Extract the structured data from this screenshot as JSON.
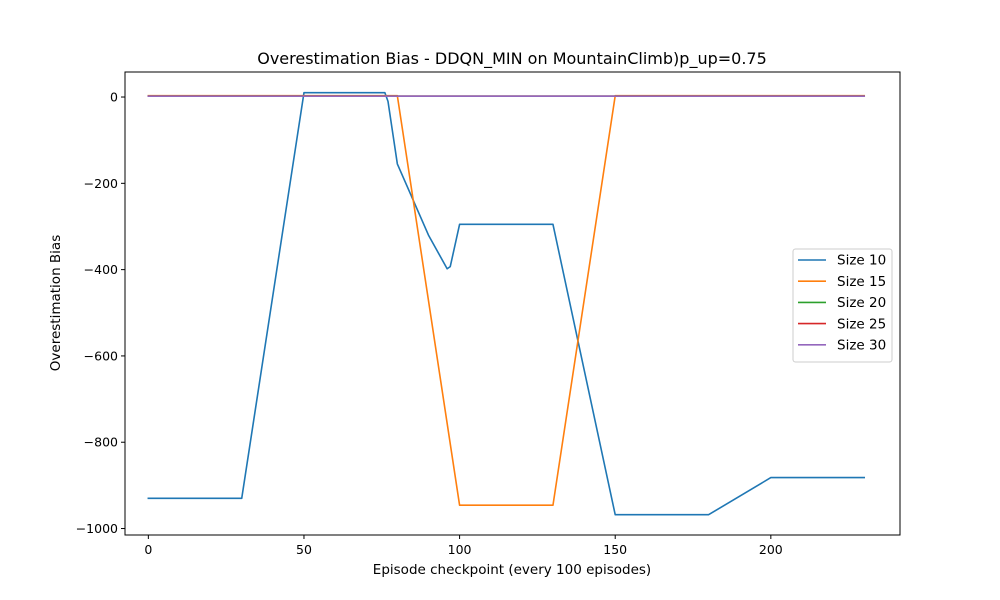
{
  "chart_data": {
    "type": "line",
    "title": "Overestimation Bias - DDQN_MIN on MountainClimb)p_up=0.75",
    "xlabel": "Episode checkpoint (every 100 episodes)",
    "ylabel": "Overestimation Bias",
    "xlim": [
      -7.5,
      241.5
    ],
    "ylim": [
      -1015,
      58
    ],
    "xticks": [
      0,
      50,
      100,
      150,
      200
    ],
    "yticks": [
      0,
      -200,
      -400,
      -600,
      -800,
      -1000
    ],
    "xtick_labels": [
      "0",
      "50",
      "100",
      "150",
      "200"
    ],
    "ytick_labels": [
      "0",
      "−200",
      "−400",
      "−600",
      "−800",
      "−1000"
    ],
    "grid": false,
    "legend_position": "center-right",
    "series": [
      {
        "name": "Size 10",
        "color": "#1f77b4",
        "points": [
          [
            0,
            -930
          ],
          [
            30,
            -930
          ],
          [
            50,
            10
          ],
          [
            76,
            10
          ],
          [
            77,
            -10
          ],
          [
            80,
            -155
          ],
          [
            90,
            -320
          ],
          [
            96,
            -398
          ],
          [
            97,
            -393
          ],
          [
            100,
            -295
          ],
          [
            130,
            -295
          ],
          [
            150,
            -968
          ],
          [
            180,
            -968
          ],
          [
            200,
            -882
          ],
          [
            230,
            -882
          ]
        ]
      },
      {
        "name": "Size 15",
        "color": "#ff7f0e",
        "points": [
          [
            0,
            3
          ],
          [
            80,
            3
          ],
          [
            100,
            -946
          ],
          [
            130,
            -946
          ],
          [
            150,
            3
          ],
          [
            230,
            3
          ]
        ]
      },
      {
        "name": "Size 20",
        "color": "#2ca02c",
        "points": [
          [
            0,
            2
          ],
          [
            230,
            2
          ]
        ]
      },
      {
        "name": "Size 25",
        "color": "#d62728",
        "points": [
          [
            0,
            2
          ],
          [
            230,
            2
          ]
        ]
      },
      {
        "name": "Size 30",
        "color": "#9467bd",
        "points": [
          [
            0,
            2
          ],
          [
            230,
            2
          ]
        ]
      }
    ]
  }
}
